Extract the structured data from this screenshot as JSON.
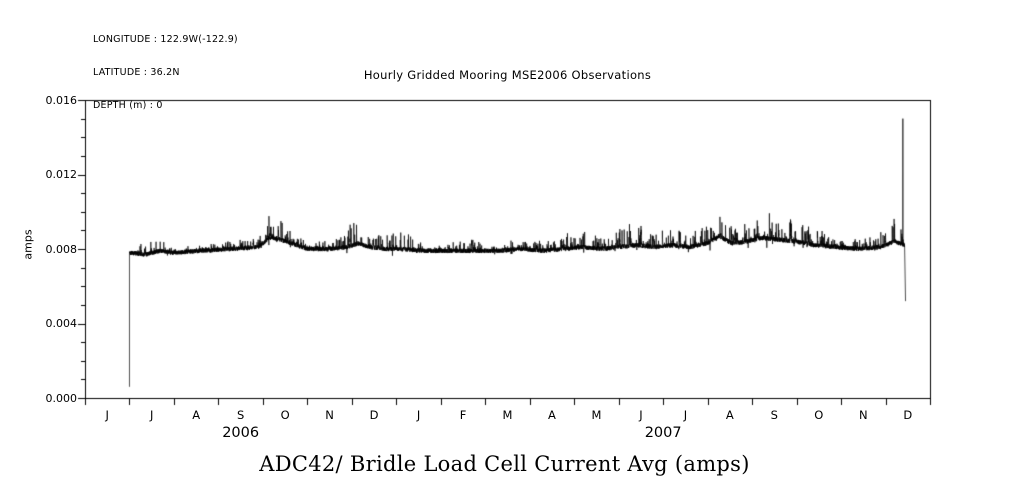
{
  "meta": {
    "longitude": "LONGITUDE : 122.9W(-122.9)",
    "latitude": "LATITUDE : 36.2N",
    "depth": "DEPTH (m) : 0"
  },
  "chart_data": {
    "type": "line",
    "title": "Hourly Gridded Mooring MSE2006 Observations",
    "caption": "ADC42/ Bridle Load Cell Current Avg (amps)",
    "xlabel": "",
    "ylabel": "amps",
    "ylim": [
      0.0,
      0.016
    ],
    "y_ticks": [
      0.0,
      0.004,
      0.008,
      0.012,
      0.016
    ],
    "y_tick_labels": [
      "0.000",
      "0.004",
      "0.008",
      "0.012",
      "0.016"
    ],
    "y_minor_step": 0.001,
    "x_range_months": [
      0,
      19
    ],
    "x_axis_start": "2006-06",
    "x_axis_end": "2008-01",
    "x_months": [
      "J",
      "J",
      "A",
      "S",
      "O",
      "N",
      "D",
      "J",
      "F",
      "M",
      "A",
      "M",
      "J",
      "J",
      "A",
      "S",
      "O",
      "N",
      "D"
    ],
    "years": [
      {
        "label": "2006",
        "center_month": 3.5
      },
      {
        "label": "2007",
        "center_month": 13.0
      }
    ],
    "grid": false,
    "legend": "none",
    "line_color": "#000000",
    "frame_color": "#000000",
    "series": {
      "name": "Bridle Load Cell Current Avg",
      "units": "amps",
      "t_start": 1.0,
      "t_end": 18.45,
      "start_value": 0.0006,
      "baseline": 0.008,
      "end_spike_peak": 0.015,
      "end_value": 0.0052,
      "samples_per_month": 520,
      "seed": 1337,
      "jitter": 0.00012,
      "envelope": [
        [
          1.0,
          0.0078,
          0.0003
        ],
        [
          1.35,
          0.0077,
          0.0005
        ],
        [
          1.7,
          0.0079,
          0.0006
        ],
        [
          2.0,
          0.0078,
          0.0003
        ],
        [
          2.6,
          0.0079,
          0.0003
        ],
        [
          3.3,
          0.008,
          0.0004
        ],
        [
          3.9,
          0.0081,
          0.0006
        ],
        [
          4.15,
          0.0086,
          0.0014
        ],
        [
          4.4,
          0.0085,
          0.0011
        ],
        [
          4.65,
          0.0083,
          0.0006
        ],
        [
          5.0,
          0.008,
          0.0003
        ],
        [
          5.5,
          0.008,
          0.0005
        ],
        [
          5.9,
          0.0081,
          0.0009
        ],
        [
          6.15,
          0.0083,
          0.0017
        ],
        [
          6.4,
          0.0081,
          0.0008
        ],
        [
          6.75,
          0.008,
          0.0009
        ],
        [
          7.1,
          0.008,
          0.0012
        ],
        [
          7.5,
          0.0079,
          0.0005
        ],
        [
          8.2,
          0.0079,
          0.0004
        ],
        [
          8.8,
          0.0079,
          0.0006
        ],
        [
          9.3,
          0.0079,
          0.0004
        ],
        [
          9.8,
          0.008,
          0.0006
        ],
        [
          10.3,
          0.0079,
          0.0005
        ],
        [
          10.8,
          0.008,
          0.0008
        ],
        [
          11.2,
          0.0081,
          0.001
        ],
        [
          11.6,
          0.008,
          0.0007
        ],
        [
          12.0,
          0.0081,
          0.001
        ],
        [
          12.4,
          0.0082,
          0.0012
        ],
        [
          12.8,
          0.0081,
          0.0008
        ],
        [
          13.2,
          0.0082,
          0.001
        ],
        [
          13.6,
          0.0081,
          0.0008
        ],
        [
          14.0,
          0.0083,
          0.0012
        ],
        [
          14.25,
          0.0087,
          0.0013
        ],
        [
          14.55,
          0.0083,
          0.0008
        ],
        [
          14.9,
          0.0084,
          0.0012
        ],
        [
          15.2,
          0.0086,
          0.0013
        ],
        [
          15.6,
          0.0085,
          0.0012
        ],
        [
          16.0,
          0.0084,
          0.0011
        ],
        [
          16.4,
          0.0082,
          0.0008
        ],
        [
          16.9,
          0.0081,
          0.0006
        ],
        [
          17.4,
          0.008,
          0.0005
        ],
        [
          17.9,
          0.0081,
          0.0008
        ],
        [
          18.2,
          0.0084,
          0.0012
        ],
        [
          18.45,
          0.0082,
          0.0005
        ]
      ]
    }
  }
}
